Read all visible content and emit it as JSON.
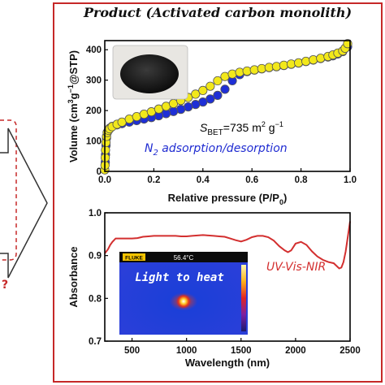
{
  "title": "Product (Activated carbon monolith)",
  "colors": {
    "frame": "#c62828",
    "adsorption": "#f2e81a",
    "desorption": "#1e2fd6",
    "marker_edge": "#555555",
    "absorbance": "#d32f2f",
    "n2_text": "#1f2bd1",
    "uv_text": "#d32f2f"
  },
  "annotations": {
    "sbet_prefix": "S",
    "sbet_sub": "BET",
    "sbet_value": "=735 m",
    "sbet_exp1": "2",
    "sbet_mid": " g",
    "sbet_exp2": "−1",
    "n2_prefix": "N",
    "n2_sub": "2",
    "n2_rest": " adsorption/desorption",
    "uv_label": "UV-Vis-NIR",
    "inset_text": "Light to heat",
    "inset_brand": "FLUKE",
    "inset_temp": "56.4°C"
  },
  "left_fragment": {
    "color": "#c62828",
    "glyph": "?"
  },
  "chart_data": [
    {
      "type": "scatter",
      "xlabel": "Relative pressure (P/P0)",
      "xlabel_main": "Relative pressure (P/P",
      "xlabel_sub": "0",
      "xlabel_end": ")",
      "ylabel_parts": [
        "Volume (cm",
        "3",
        "g",
        "−1",
        "@STP)"
      ],
      "xlim": [
        0,
        1.0
      ],
      "ylim": [
        0,
        430
      ],
      "xticks": [
        "0.0",
        "0.2",
        "0.4",
        "0.6",
        "0.8",
        "1.0"
      ],
      "yticks": [
        "0",
        "100",
        "200",
        "300",
        "400"
      ],
      "series": [
        {
          "key": "adsorption",
          "x": [
            0.0,
            0.001,
            0.002,
            0.003,
            0.005,
            0.007,
            0.01,
            0.015,
            0.02,
            0.03,
            0.05,
            0.07,
            0.1,
            0.13,
            0.16,
            0.19,
            0.22,
            0.25,
            0.28,
            0.31,
            0.34,
            0.37,
            0.4,
            0.43,
            0.46,
            0.49,
            0.52,
            0.55,
            0.58,
            0.61,
            0.64,
            0.67,
            0.7,
            0.73,
            0.76,
            0.79,
            0.82,
            0.85,
            0.88,
            0.91,
            0.93,
            0.95,
            0.97,
            0.98,
            0.99
          ],
          "y": [
            5,
            20,
            45,
            70,
            95,
            115,
            128,
            135,
            140,
            147,
            155,
            162,
            172,
            180,
            188,
            196,
            205,
            214,
            223,
            233,
            243,
            254,
            266,
            280,
            298,
            312,
            320,
            326,
            330,
            334,
            338,
            342,
            345,
            349,
            353,
            357,
            362,
            367,
            372,
            378,
            383,
            389,
            396,
            405,
            420
          ]
        },
        {
          "key": "desorption",
          "x": [
            0.99,
            0.97,
            0.95,
            0.93,
            0.91,
            0.88,
            0.85,
            0.82,
            0.79,
            0.76,
            0.73,
            0.7,
            0.67,
            0.64,
            0.61,
            0.58,
            0.55,
            0.52,
            0.49,
            0.46,
            0.43,
            0.4,
            0.37,
            0.34,
            0.31,
            0.28,
            0.25,
            0.22,
            0.19,
            0.16,
            0.13,
            0.1,
            0.07,
            0.05,
            0.03,
            0.02,
            0.01,
            0.007,
            0.005,
            0.003,
            0.002
          ],
          "y": [
            410,
            394,
            386,
            380,
            376,
            371,
            366,
            361,
            356,
            352,
            348,
            344,
            341,
            337,
            333,
            328,
            318,
            298,
            270,
            250,
            238,
            228,
            220,
            212,
            204,
            197,
            190,
            183,
            177,
            172,
            167,
            162,
            157,
            153,
            148,
            142,
            128,
            110,
            85,
            55,
            30
          ]
        }
      ]
    },
    {
      "type": "line",
      "xlabel": "Wavelength (nm)",
      "ylabel": "Absorbance",
      "xlim": [
        250,
        2500
      ],
      "ylim": [
        0.7,
        1.0
      ],
      "xticks": [
        "500",
        "1000",
        "1500",
        "2000",
        "2500"
      ],
      "yticks": [
        "0.7",
        "0.8",
        "0.9",
        "1.0"
      ],
      "x": [
        250,
        280,
        300,
        320,
        350,
        400,
        450,
        500,
        550,
        600,
        650,
        700,
        750,
        800,
        850,
        900,
        950,
        1000,
        1050,
        1100,
        1150,
        1200,
        1250,
        1300,
        1350,
        1400,
        1450,
        1500,
        1550,
        1600,
        1650,
        1700,
        1750,
        1800,
        1850,
        1900,
        1930,
        1960,
        2000,
        2050,
        2100,
        2150,
        2200,
        2250,
        2300,
        2350,
        2400,
        2420,
        2440,
        2460,
        2480,
        2500
      ],
      "y": [
        0.905,
        0.915,
        0.925,
        0.932,
        0.94,
        0.94,
        0.94,
        0.94,
        0.941,
        0.944,
        0.945,
        0.946,
        0.946,
        0.946,
        0.946,
        0.946,
        0.945,
        0.945,
        0.946,
        0.947,
        0.948,
        0.947,
        0.946,
        0.945,
        0.944,
        0.94,
        0.936,
        0.933,
        0.937,
        0.943,
        0.946,
        0.946,
        0.943,
        0.935,
        0.922,
        0.912,
        0.908,
        0.912,
        0.928,
        0.932,
        0.925,
        0.91,
        0.898,
        0.89,
        0.885,
        0.882,
        0.87,
        0.872,
        0.885,
        0.91,
        0.945,
        0.98
      ]
    }
  ]
}
